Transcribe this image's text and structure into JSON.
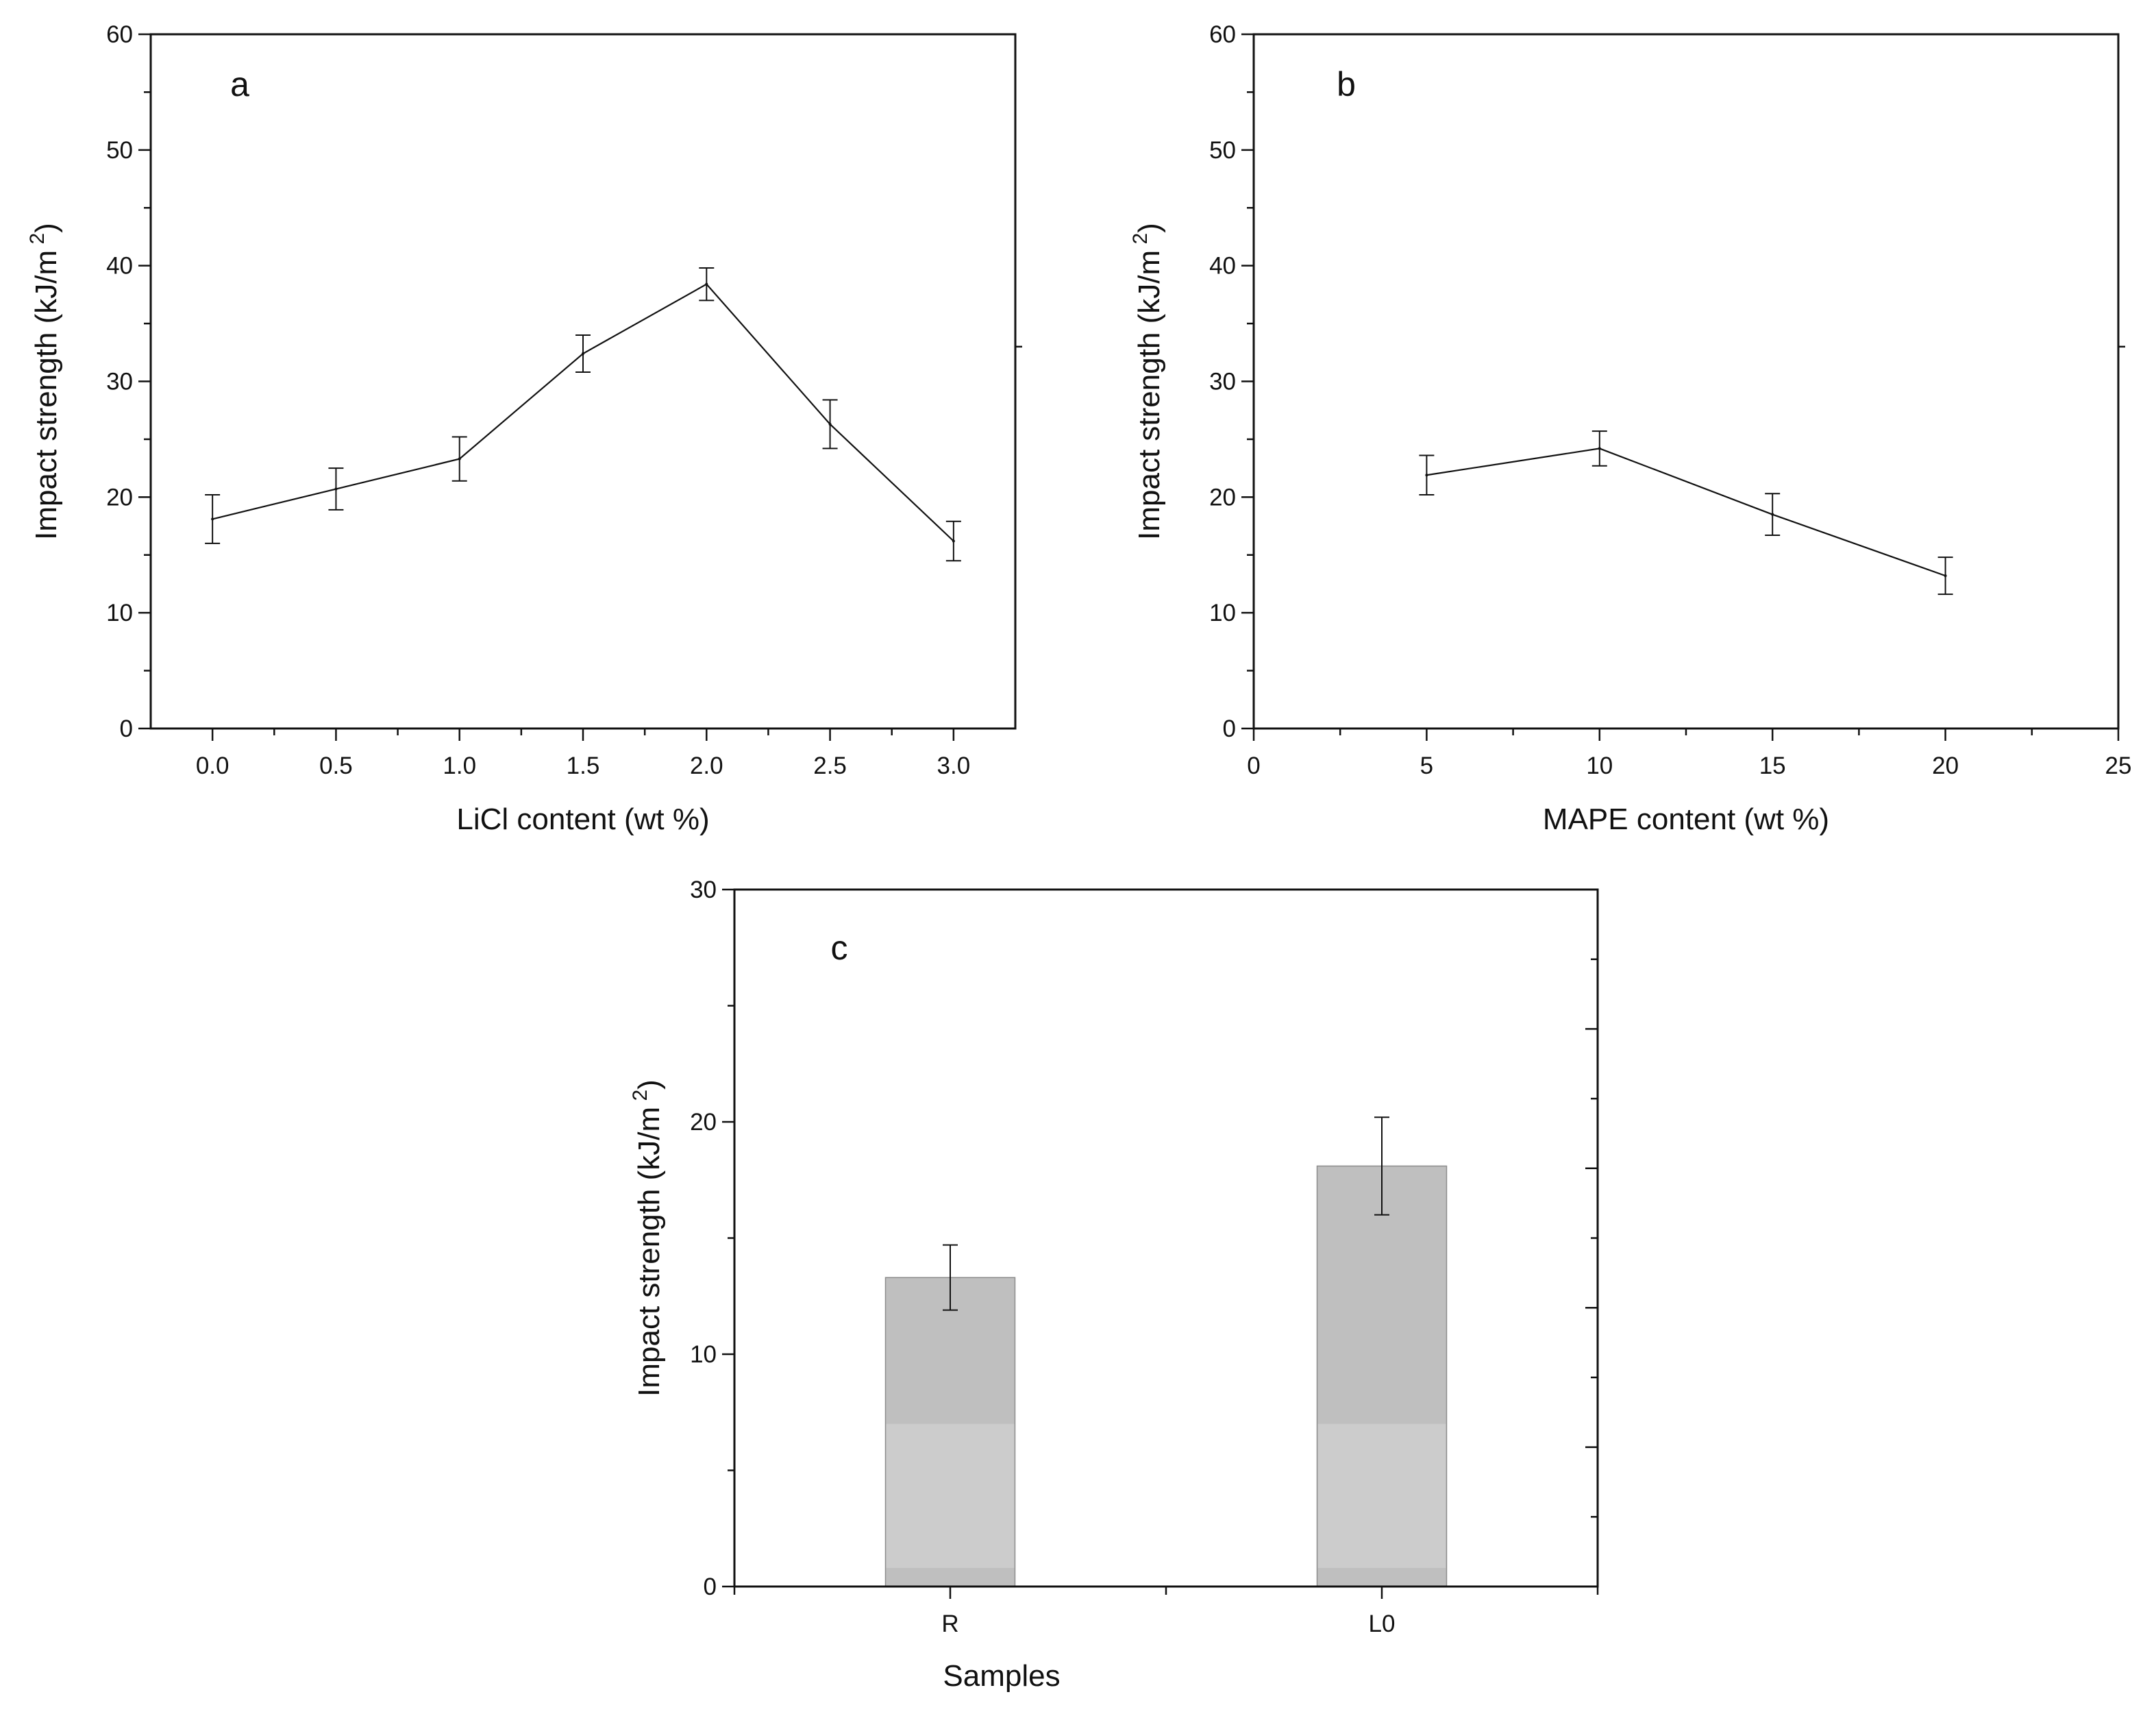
{
  "chart_data": [
    {
      "panel": "a",
      "type": "line",
      "xlabel": "LiCl content (wt %)",
      "ylabel": "Impact strength (kJ/m",
      "ylabel_sup": "2",
      "ylabel_close": ")",
      "xlim": [
        -0.25,
        3.25
      ],
      "ylim": [
        0,
        60
      ],
      "xticks": [
        "0.0",
        "0.5",
        "1.0",
        "1.5",
        "2.0",
        "2.5",
        "3.0"
      ],
      "yticks": [
        "0",
        "10",
        "20",
        "30",
        "40",
        "50",
        "60"
      ],
      "x": [
        0.0,
        0.5,
        1.0,
        1.5,
        2.0,
        2.5,
        3.0
      ],
      "y": [
        18.1,
        20.7,
        23.3,
        32.4,
        38.4,
        26.3,
        16.2
      ],
      "err_low": [
        2.1,
        1.8,
        1.9,
        1.6,
        1.4,
        2.1,
        1.7
      ],
      "err_high": [
        2.1,
        1.8,
        1.9,
        1.6,
        1.4,
        2.1,
        1.7
      ]
    },
    {
      "panel": "b",
      "type": "line",
      "xlabel": "MAPE content (wt %)",
      "ylabel": "Impact strength (kJ/m",
      "ylabel_sup": "2",
      "ylabel_close": ")",
      "xlim": [
        0,
        25
      ],
      "ylim": [
        0,
        60
      ],
      "xticks": [
        "0",
        "5",
        "10",
        "15",
        "20",
        "25"
      ],
      "yticks": [
        "0",
        "10",
        "20",
        "30",
        "40",
        "50",
        "60"
      ],
      "x": [
        5,
        10,
        15,
        20
      ],
      "y": [
        21.9,
        24.2,
        18.5,
        13.2
      ],
      "err_low": [
        1.7,
        1.5,
        1.8,
        1.6
      ],
      "err_high": [
        1.7,
        1.5,
        1.8,
        1.6
      ]
    },
    {
      "panel": "c",
      "type": "bar",
      "xlabel": "Samples",
      "ylabel": "Impact strength (kJ/m",
      "ylabel_sup": "2",
      "ylabel_close": ")",
      "ylim": [
        0,
        30
      ],
      "yticks": [
        "0",
        "10",
        "20",
        "30"
      ],
      "categories": [
        "R",
        "L0"
      ],
      "values": [
        13.3,
        18.1
      ],
      "err_low": [
        1.4,
        2.1
      ],
      "err_high": [
        1.4,
        2.1
      ],
      "bar_colors": {
        "fill": "#bfbfbf",
        "light_band": "#cccccc",
        "edge": "#8c8c8c"
      }
    }
  ]
}
